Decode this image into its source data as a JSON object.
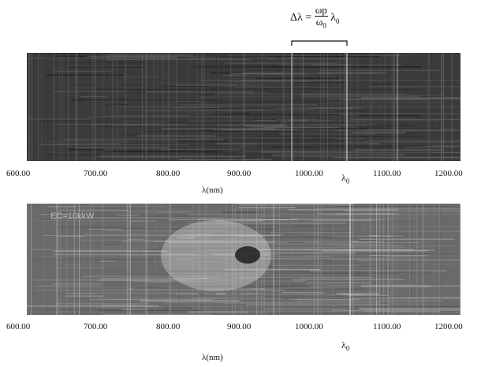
{
  "formula": {
    "lhs": "Δλ =",
    "numerator": "ω",
    "numerator_sub": "p",
    "denominator": "ω",
    "denominator_sub": "0",
    "rhs": "λ",
    "rhs_sub": "0"
  },
  "top_panel": {
    "ticks": [
      "600.00",
      "700.00",
      "800.00",
      "900.00",
      "1000.00",
      "1100.00",
      "1200.00"
    ],
    "lambda0": "λ",
    "lambda0_sub": "0",
    "xlabel": "λ(nm)"
  },
  "bottom_panel": {
    "inset_text": "EC=10kkW",
    "ticks": [
      "600.00",
      "700.00",
      "800.00",
      "900.00",
      "1000.00",
      "1100.00",
      "1200.00"
    ],
    "lambda0": "λ",
    "lambda0_sub": "0",
    "xlabel": "λ(nm)"
  },
  "colors": {
    "top_background": "#3a3a3a",
    "bottom_background": "#6a6a6a"
  }
}
